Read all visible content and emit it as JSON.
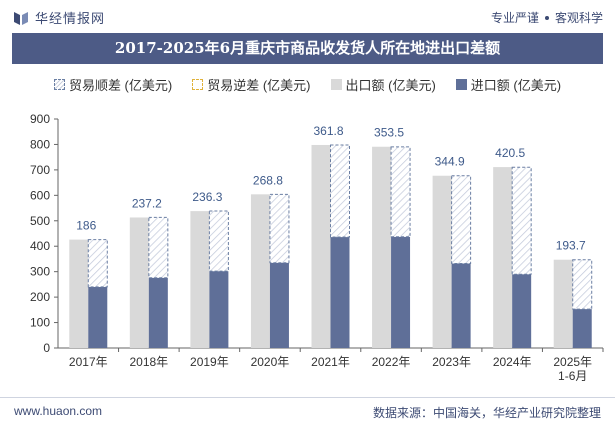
{
  "header": {
    "brand_name": "华经情报网",
    "tagline_a": "专业严谨",
    "tagline_b": "客观科学"
  },
  "title": "2017-2025年6月重庆市商品收发货人所在地进出口差额",
  "legend": {
    "shun": "贸易顺差 (亿美元)",
    "ni": "贸易逆差 (亿美元)",
    "exp": "出口额 (亿美元)",
    "imp": "进口额 (亿美元)"
  },
  "footer": {
    "website": "www.huaon.com",
    "source": "数据来源：中国海关，华经产业研究院整理"
  },
  "colors": {
    "export": "#d9d9d9",
    "import": "#5f6f98",
    "surplus_border": "#6b7fa3",
    "label": "#3e5a8a",
    "title_bg": "#4d5b86"
  },
  "chart_data": {
    "type": "bar",
    "categories": [
      "2017年",
      "2018年",
      "2019年",
      "2020年",
      "2021年",
      "2022年",
      "2023年",
      "2024年",
      "2025年\n1-6月"
    ],
    "series": [
      {
        "name": "出口额 (亿美元)",
        "values": [
          426,
          513,
          538,
          604,
          798,
          791,
          677,
          711,
          347
        ]
      },
      {
        "name": "进口额 (亿美元)",
        "values": [
          240,
          276,
          302,
          335,
          436,
          437,
          332,
          290,
          153
        ]
      },
      {
        "name": "贸易顺差 (亿美元)",
        "values": [
          186,
          237.2,
          236.3,
          268.8,
          361.8,
          353.5,
          344.9,
          420.5,
          193.7
        ]
      },
      {
        "name": "贸易逆差 (亿美元)",
        "values": [
          0,
          0,
          0,
          0,
          0,
          0,
          0,
          0,
          0
        ]
      }
    ],
    "ylim": [
      0,
      900
    ],
    "yticks": [
      0,
      100,
      200,
      300,
      400,
      500,
      600,
      700,
      800,
      900
    ],
    "grid": false,
    "legend_position": "top-center"
  }
}
